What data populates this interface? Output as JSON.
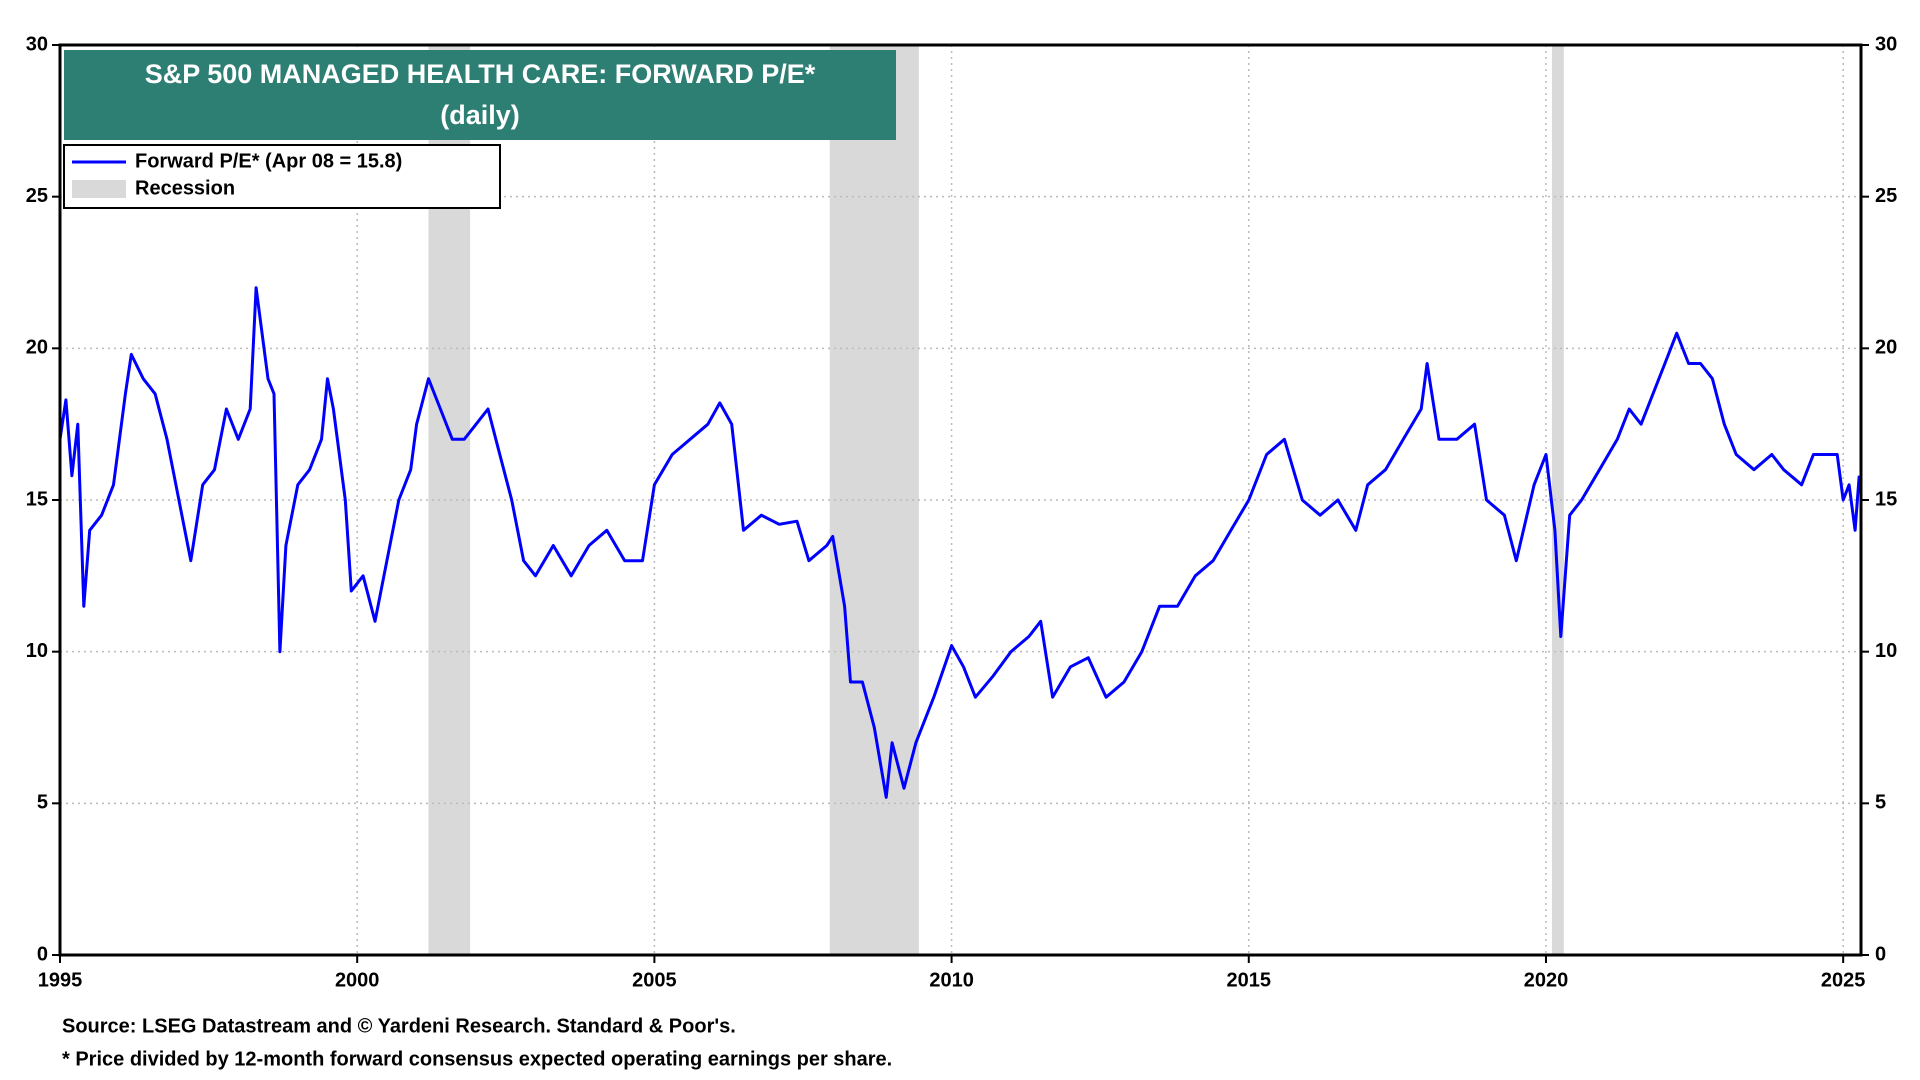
{
  "chart_data": {
    "type": "line",
    "title": "S&P 500 MANAGED HEALTH CARE: FORWARD P/E*",
    "subtitle": "(daily)",
    "source": "Source: LSEG Datastream and © Yardeni Research. Standard & Poor's.",
    "note": "* Price divided by 12-month forward consensus expected operating earnings per share.",
    "xlim": [
      1995,
      2025.3
    ],
    "xticks": [
      1995,
      2000,
      2005,
      2010,
      2015,
      2020,
      2025
    ],
    "ylim": [
      0,
      30
    ],
    "yticks": [
      0,
      5,
      10,
      15,
      20,
      25,
      30
    ],
    "grid": true,
    "legend": "upper left",
    "recession": {
      "name": "Recession",
      "color": "#d9d9d9",
      "spans": [
        [
          2001.2,
          2001.9
        ],
        [
          2007.95,
          2009.45
        ],
        [
          2020.1,
          2020.3
        ]
      ]
    },
    "x": [
      1995.0,
      1995.1,
      1995.2,
      1995.3,
      1995.4,
      1995.5,
      1995.7,
      1995.9,
      1996.1,
      1996.2,
      1996.4,
      1996.6,
      1996.8,
      1997.0,
      1997.2,
      1997.4,
      1997.6,
      1997.8,
      1998.0,
      1998.2,
      1998.3,
      1998.5,
      1998.6,
      1998.7,
      1998.8,
      1999.0,
      1999.2,
      1999.4,
      1999.5,
      1999.6,
      1999.8,
      1999.9,
      2000.1,
      2000.3,
      2000.5,
      2000.7,
      2000.9,
      2001.0,
      2001.2,
      2001.4,
      2001.6,
      2001.8,
      2002.0,
      2002.2,
      2002.4,
      2002.6,
      2002.8,
      2003.0,
      2003.3,
      2003.6,
      2003.9,
      2004.2,
      2004.5,
      2004.8,
      2005.0,
      2005.3,
      2005.6,
      2005.9,
      2006.1,
      2006.3,
      2006.5,
      2006.8,
      2007.1,
      2007.4,
      2007.6,
      2007.9,
      2008.0,
      2008.2,
      2008.3,
      2008.5,
      2008.7,
      2008.9,
      2009.0,
      2009.2,
      2009.4,
      2009.7,
      2010.0,
      2010.2,
      2010.4,
      2010.7,
      2011.0,
      2011.3,
      2011.5,
      2011.7,
      2012.0,
      2012.3,
      2012.6,
      2012.9,
      2013.2,
      2013.5,
      2013.8,
      2014.1,
      2014.4,
      2014.7,
      2015.0,
      2015.3,
      2015.6,
      2015.9,
      2016.2,
      2016.5,
      2016.8,
      2017.0,
      2017.3,
      2017.6,
      2017.9,
      2018.0,
      2018.2,
      2018.5,
      2018.8,
      2019.0,
      2019.3,
      2019.5,
      2019.8,
      2020.0,
      2020.15,
      2020.25,
      2020.4,
      2020.6,
      2020.9,
      2021.2,
      2021.4,
      2021.6,
      2021.8,
      2022.0,
      2022.2,
      2022.4,
      2022.6,
      2022.8,
      2023.0,
      2023.2,
      2023.5,
      2023.8,
      2024.0,
      2024.3,
      2024.5,
      2024.7,
      2024.9,
      2025.0,
      2025.1,
      2025.2,
      2025.27
    ],
    "series": [
      {
        "name": "Forward P/E* (Apr 08 = 15.8)",
        "color": "#0000ff",
        "values": [
          17,
          18.3,
          15.8,
          17.5,
          11.5,
          14,
          14.5,
          15.5,
          18.5,
          19.8,
          19,
          18.5,
          17,
          15,
          13,
          15.5,
          16,
          18,
          17,
          18,
          22,
          19,
          18.5,
          10,
          13.5,
          15.5,
          16,
          17,
          19,
          18,
          15,
          12,
          12.5,
          11,
          13,
          15,
          16,
          17.5,
          19,
          18,
          17,
          17,
          17.5,
          18,
          16.5,
          15,
          13,
          12.5,
          13.5,
          12.5,
          13.5,
          14,
          13,
          13,
          15.5,
          16.5,
          17,
          17.5,
          18.2,
          17.5,
          14,
          14.5,
          14.2,
          14.3,
          13,
          13.5,
          13.8,
          11.5,
          9,
          9,
          7.5,
          5.2,
          7,
          5.5,
          7,
          8.5,
          10.2,
          9.5,
          8.5,
          9.2,
          10,
          10.5,
          11,
          8.5,
          9.5,
          9.8,
          8.5,
          9,
          10,
          11.5,
          11.5,
          12.5,
          13,
          14,
          15,
          16.5,
          17,
          15,
          14.5,
          15,
          14,
          15.5,
          16,
          17,
          18,
          19.5,
          17,
          17,
          17.5,
          15,
          14.5,
          13,
          15.5,
          16.5,
          14,
          10.5,
          14.5,
          15,
          16,
          17,
          18,
          17.5,
          18.5,
          19.5,
          20.5,
          19.5,
          19.5,
          19,
          17.5,
          16.5,
          16,
          16.5,
          16,
          15.5,
          16.5,
          16.5,
          16.5,
          15,
          15.5,
          14,
          15.8
        ]
      }
    ]
  }
}
